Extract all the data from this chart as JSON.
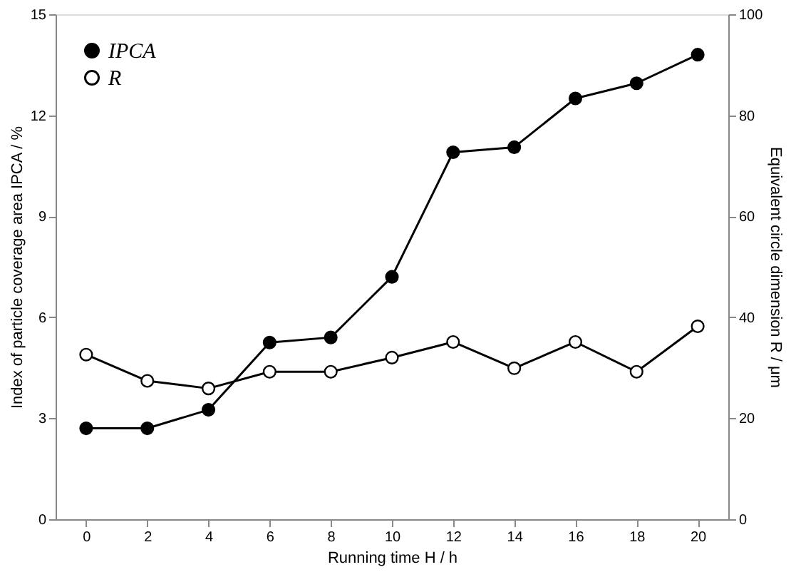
{
  "chart_data": {
    "type": "line",
    "xlabel": "Running time H / h",
    "ylabel": "Index of particle coverage area IPCA / %",
    "y2label": "Equivalent circle dimension R / μm",
    "x": [
      0,
      2,
      4,
      6,
      8,
      10,
      12,
      14,
      16,
      18,
      20
    ],
    "series": [
      {
        "name": "IPCA",
        "color": "#000000",
        "values": [
          2.7,
          2.7,
          3.25,
          5.25,
          5.4,
          7.2,
          10.9,
          11.05,
          12.5,
          12.95,
          13.8
        ]
      },
      {
        "name": "R",
        "color": "#ffffff",
        "axis": "y2",
        "values": [
          32.6,
          27.4,
          25.9,
          29.2,
          29.2,
          32.0,
          35.1,
          29.9,
          35.1,
          29.2,
          38.2
        ]
      }
    ],
    "xlim": [
      -1,
      21
    ],
    "xticks": [
      0,
      2,
      4,
      6,
      8,
      10,
      12,
      14,
      16,
      18,
      20
    ],
    "ylim": [
      0,
      15
    ],
    "yticks": [
      0,
      3,
      6,
      9,
      12,
      15
    ],
    "y2lim": [
      0,
      100
    ],
    "y2ticks": [
      0,
      20,
      40,
      60,
      80,
      100
    ],
    "grid": false,
    "legend": "top left",
    "marker": "circle",
    "line_style": "solid"
  }
}
